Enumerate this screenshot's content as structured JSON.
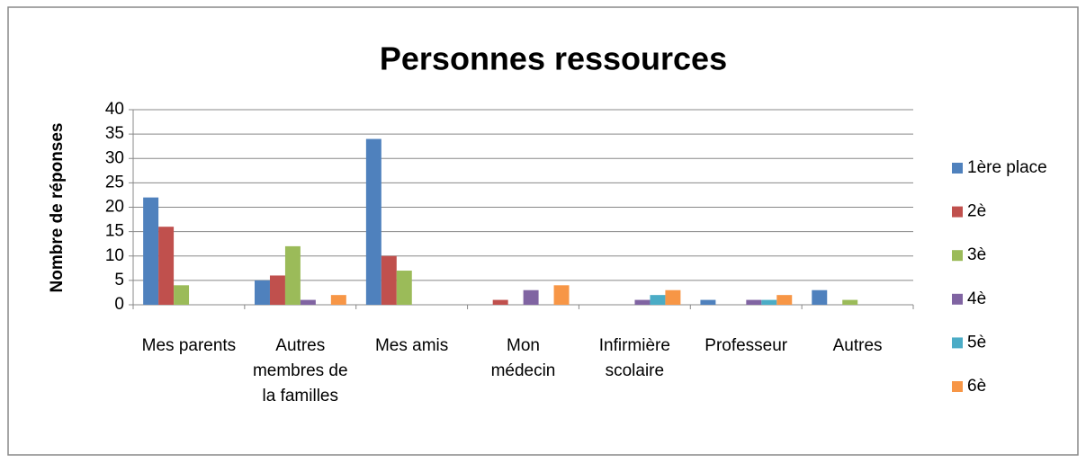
{
  "chart_data": {
    "type": "bar",
    "title": "Personnes ressources",
    "y_label": "Nombre de réponses",
    "categories": [
      "Mes parents",
      "Autres membres de la familles",
      "Mes amis",
      "Mon médecin",
      "Infirmière scolaire",
      "Professeur",
      "Autres"
    ],
    "series": [
      {
        "name": "1ère place",
        "color": "#4f81bd",
        "values": [
          22,
          5,
          34,
          0,
          0,
          1,
          3
        ]
      },
      {
        "name": "2è",
        "color": "#c0504d",
        "values": [
          16,
          6,
          10,
          1,
          0,
          0,
          0
        ]
      },
      {
        "name": "3è",
        "color": "#9bbb59",
        "values": [
          4,
          12,
          7,
          0,
          0,
          0,
          1
        ]
      },
      {
        "name": "4è",
        "color": "#8064a2",
        "values": [
          0,
          1,
          0,
          3,
          1,
          1,
          0
        ]
      },
      {
        "name": "5è",
        "color": "#4bacc6",
        "values": [
          0,
          0,
          0,
          0,
          2,
          1,
          0
        ]
      },
      {
        "name": "6è",
        "color": "#f79646",
        "values": [
          0,
          2,
          0,
          4,
          3,
          2,
          0
        ]
      }
    ],
    "ylim": [
      0,
      40
    ],
    "yticks": [
      0,
      5,
      10,
      15,
      20,
      25,
      30,
      35,
      40
    ],
    "grid": true,
    "legend": "right"
  }
}
